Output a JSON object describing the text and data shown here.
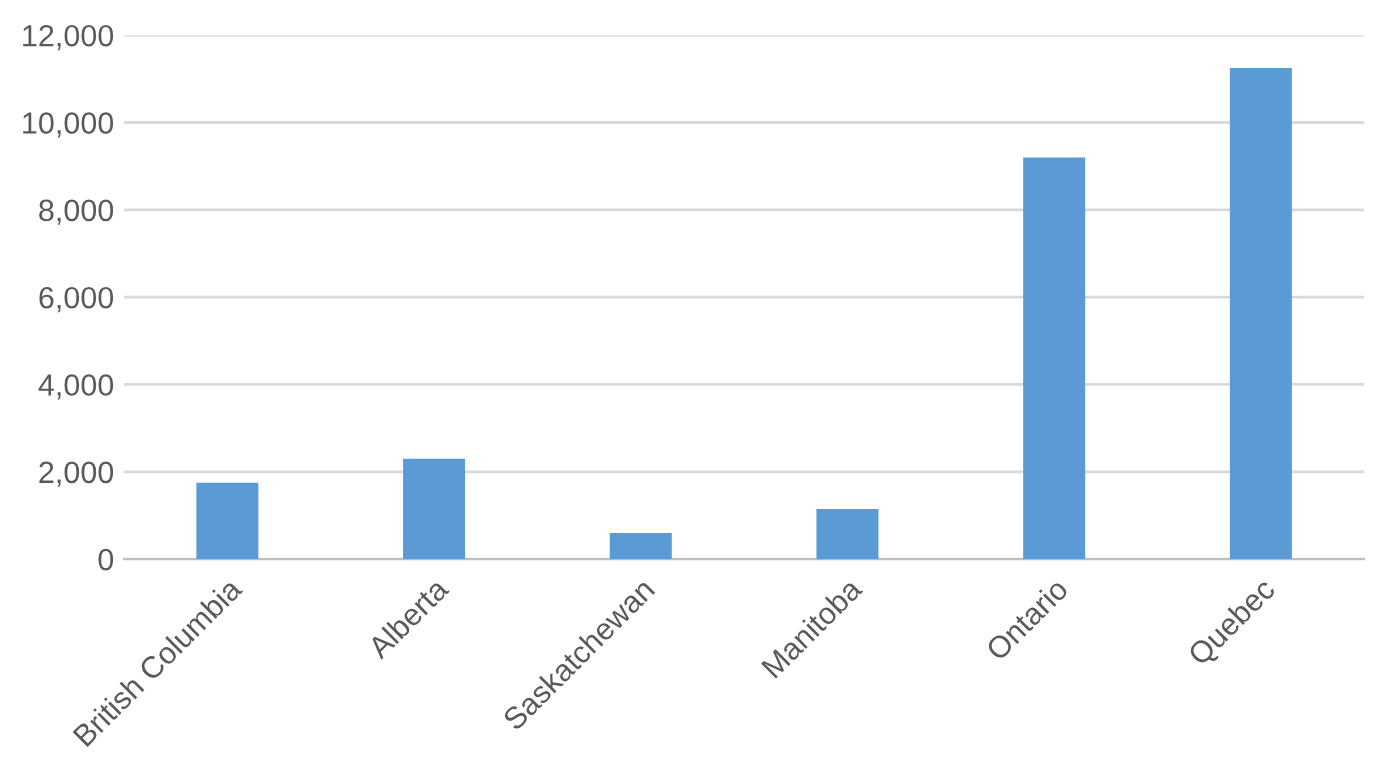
{
  "chart_data": {
    "type": "bar",
    "categories": [
      "British Columbia",
      "Alberta",
      "Saskatchewan",
      "Manitoba",
      "Ontario",
      "Quebec"
    ],
    "values": [
      1750,
      2300,
      600,
      1150,
      9200,
      11250
    ],
    "color": "#5b9bd5",
    "ylim": [
      0,
      12000
    ],
    "yticks": [
      {
        "value": 0,
        "label": "0"
      },
      {
        "value": 2000,
        "label": "2,000"
      },
      {
        "value": 4000,
        "label": "4,000"
      },
      {
        "value": 6000,
        "label": "6,000"
      },
      {
        "value": 8000,
        "label": "8,000"
      },
      {
        "value": 10000,
        "label": "10,000"
      },
      {
        "value": 12000,
        "label": "12,000"
      }
    ],
    "grid": "y"
  }
}
